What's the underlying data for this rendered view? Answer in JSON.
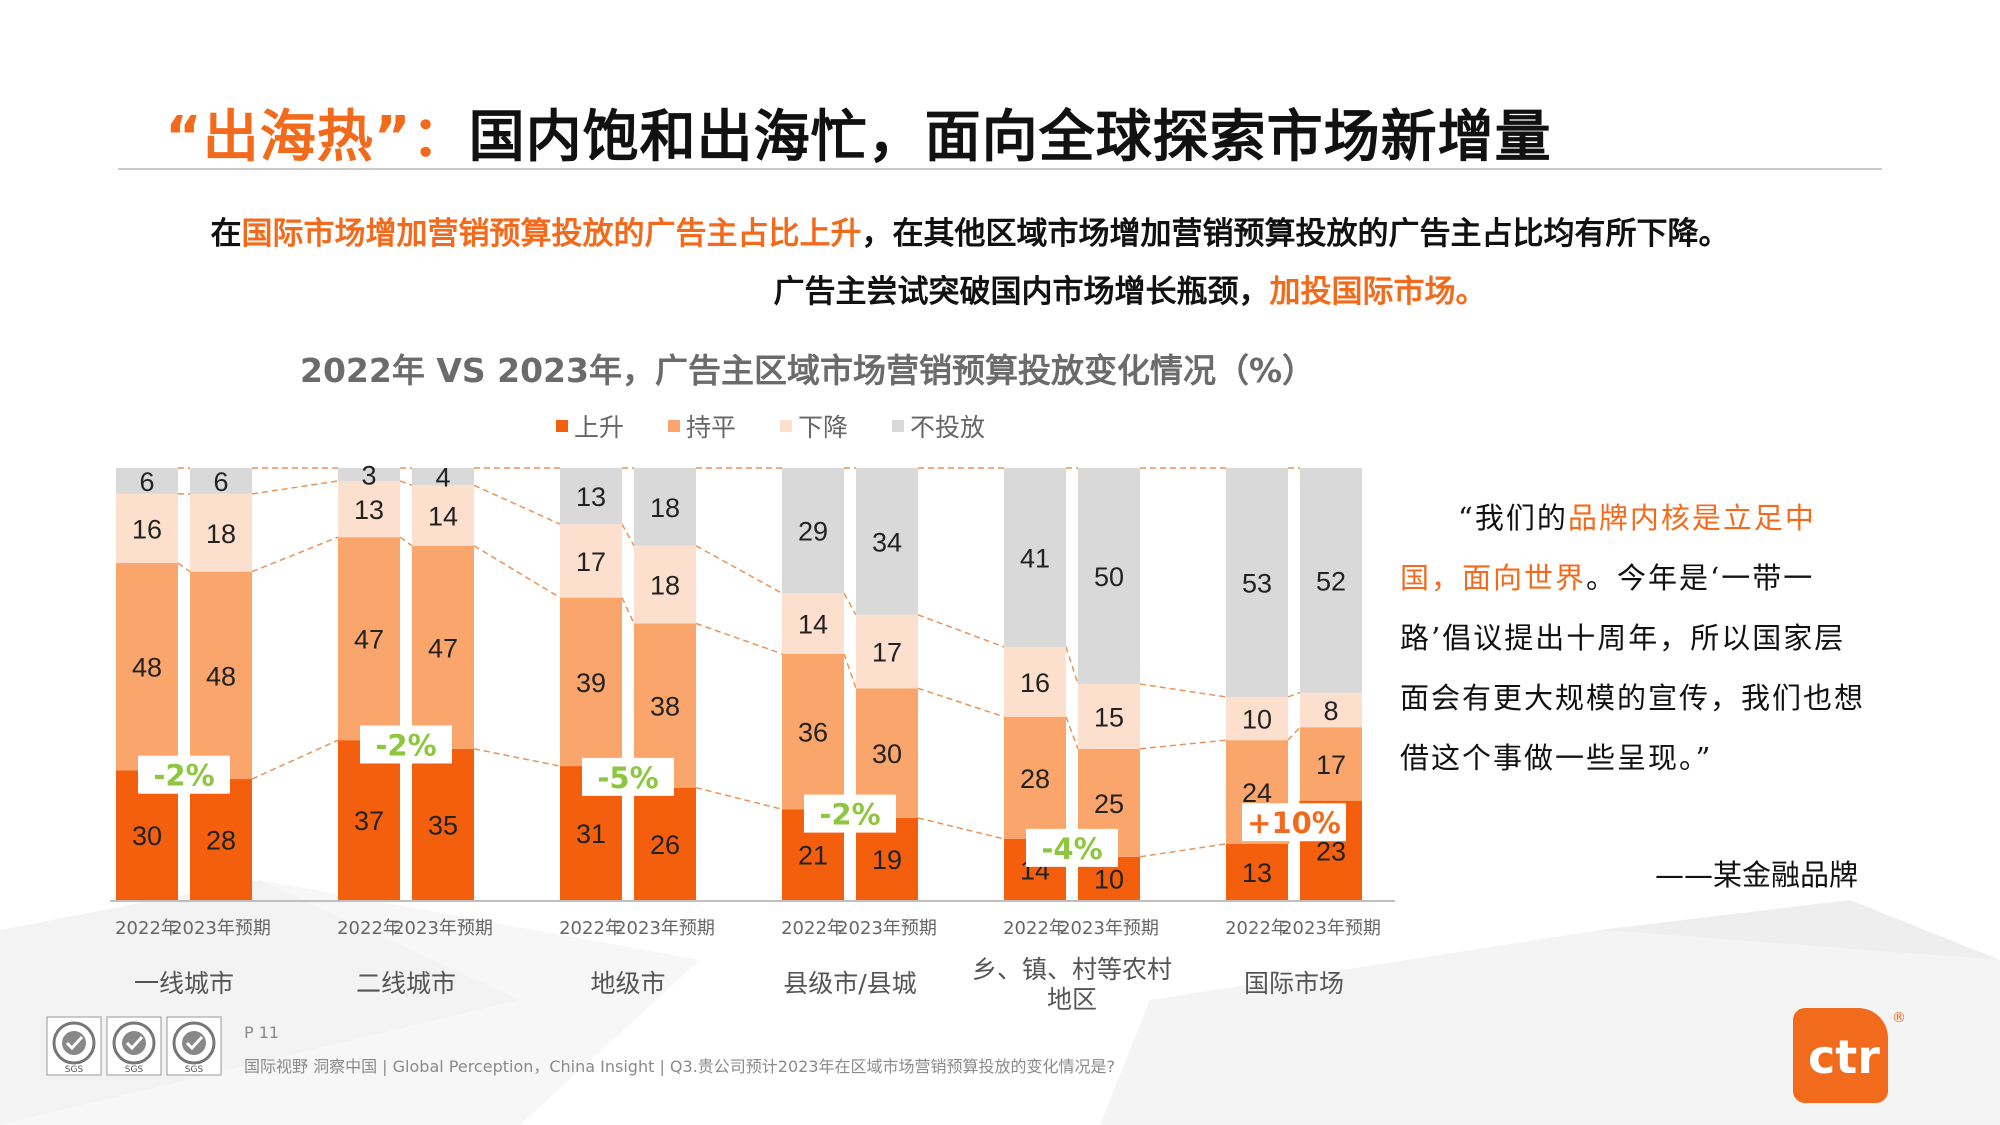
{
  "title": {
    "accent": "“出海热”：",
    "main": "国内饱和出海忙，面向全球探索市场新增量"
  },
  "subtitle": {
    "line1_pre": "在",
    "line1_hl": "国际市场增加营销预算投放的广告主占比上升",
    "line1_post": "，在其他区域市场增加营销预算投放的广告主占比均有所下降。",
    "line2_pre": "广告主尝试突破国内市场增长瓶颈，",
    "line2_hl": "加投国际市场。"
  },
  "chart_data": {
    "type": "bar",
    "stacked": true,
    "title": "2022年 VS 2023年，广告主区域市场营销预算投放变化情况（%）",
    "legend_position": "top",
    "series": [
      {
        "name": "上升",
        "color": "#F45F0D"
      },
      {
        "name": "持平",
        "color": "#F9A56C"
      },
      {
        "name": "下降",
        "color": "#FCE0CD"
      },
      {
        "name": "不投放",
        "color": "#D9D9D9"
      }
    ],
    "groups": [
      {
        "name": "一线城市",
        "change": "-2%",
        "bars": [
          {
            "label": "2022年",
            "values": [
              30,
              48,
              16,
              6
            ]
          },
          {
            "label": "2023年预期",
            "values": [
              28,
              48,
              18,
              6
            ]
          }
        ]
      },
      {
        "name": "二线城市",
        "change": "-2%",
        "bars": [
          {
            "label": "2022年",
            "values": [
              37,
              47,
              13,
              3
            ]
          },
          {
            "label": "2023年预期",
            "values": [
              35,
              47,
              14,
              4
            ]
          }
        ]
      },
      {
        "name": "地级市",
        "change": "-5%",
        "bars": [
          {
            "label": "2022年",
            "values": [
              31,
              39,
              17,
              13
            ]
          },
          {
            "label": "2023年预期",
            "values": [
              26,
              38,
              18,
              18
            ]
          }
        ]
      },
      {
        "name": "县级市/县城",
        "change": "-2%",
        "bars": [
          {
            "label": "2022年",
            "values": [
              21,
              36,
              14,
              29
            ]
          },
          {
            "label": "2023年预期",
            "values": [
              19,
              30,
              17,
              34
            ]
          }
        ]
      },
      {
        "name": "乡、镇、村等农村地区",
        "name_lines": [
          "乡、镇、村等农村",
          "地区"
        ],
        "change": "-4%",
        "bars": [
          {
            "label": "2022年",
            "values": [
              14,
              28,
              16,
              41
            ]
          },
          {
            "label": "2023年预期",
            "values": [
              10,
              25,
              15,
              50
            ]
          }
        ]
      },
      {
        "name": "国际市场",
        "change": "+10%",
        "bars": [
          {
            "label": "2022年",
            "values": [
              13,
              24,
              10,
              53
            ]
          },
          {
            "label": "2023年预期",
            "values": [
              23,
              17,
              8,
              52
            ]
          }
        ]
      }
    ]
  },
  "quote": {
    "open": "“我们的",
    "hl": "品牌内核是立足中国，面向世界",
    "rest": "。今年是‘一带一路’倡议提出十周年，所以国家层面会有更大规模的宣传，我们也想借这个事做一些呈现。”",
    "source": "——某金融品牌"
  },
  "footer": {
    "page": "P 11",
    "text": "国际视野  洞察中国 |  Global Perception，China Insight | Q3.贵公司预计2023年在区域市场营销预算投放的变化情况是?"
  },
  "seal_text": "SGS",
  "logo": {
    "text": "ctr",
    "reg": "®"
  },
  "colors": {
    "accent": "#F26B1D",
    "change_label": "#8DC63F"
  }
}
